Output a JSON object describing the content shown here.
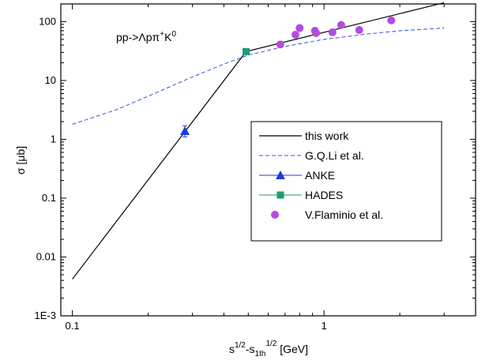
{
  "chart_data": {
    "type": "scatter",
    "xscale": "log",
    "yscale": "log",
    "xlim": [
      0.09,
      4
    ],
    "ylim": [
      0.001,
      200
    ],
    "grid": false,
    "legend_position": "center-right",
    "xlabel_parts": {
      "base1": "s",
      "sup1": "1/2",
      "mid": "-s",
      "sub": "1th",
      "sup2": "1/2",
      "tail": " [GeV]"
    },
    "ylabel": "σ [μb]",
    "annotation": {
      "text": "pp->Λpπ",
      "sup1": "+",
      "mid": "K",
      "sup2": "0"
    },
    "xticks": [
      {
        "value": 0.1,
        "label": "0.1"
      },
      {
        "value": 1,
        "label": "1"
      }
    ],
    "yticks": [
      {
        "value": 0.001,
        "label": "1E-3"
      },
      {
        "value": 0.01,
        "label": "0.01"
      },
      {
        "value": 0.1,
        "label": "0.1"
      },
      {
        "value": 1,
        "label": "1"
      },
      {
        "value": 10,
        "label": "10"
      },
      {
        "value": 100,
        "label": "100"
      }
    ],
    "series": [
      {
        "name": "this work",
        "kind": "line",
        "color": "#000000",
        "x": [
          0.1,
          0.49,
          3.0
        ],
        "y": [
          0.0042,
          31,
          210
        ]
      },
      {
        "name": "G.Q.Li et al.",
        "kind": "dashed-line",
        "color": "#3355dd",
        "x": [
          0.1,
          0.15,
          0.2,
          0.3,
          0.4,
          0.5,
          0.7,
          1.0,
          1.5,
          2.0,
          3.0
        ],
        "y": [
          1.8,
          3.2,
          5.4,
          11.5,
          19,
          27,
          38,
          50,
          62,
          70,
          78
        ]
      },
      {
        "name": "ANKE",
        "kind": "marker-triangle",
        "color": "#1e3cdc",
        "x": [
          0.28
        ],
        "y": [
          1.38
        ],
        "y_err_low": [
          1.1
        ],
        "y_err_high": [
          1.7
        ]
      },
      {
        "name": "HADES",
        "kind": "marker-square",
        "color": "#1e9a78",
        "x": [
          0.49
        ],
        "y": [
          31
        ]
      },
      {
        "name": "V.Flaminio et al.",
        "kind": "marker-circle",
        "color": "#b44be0",
        "x": [
          0.67,
          0.77,
          0.8,
          0.92,
          0.93,
          1.08,
          1.17,
          1.38,
          1.85
        ],
        "y": [
          41,
          60,
          78,
          70,
          64,
          66,
          88,
          72,
          105
        ]
      }
    ]
  }
}
